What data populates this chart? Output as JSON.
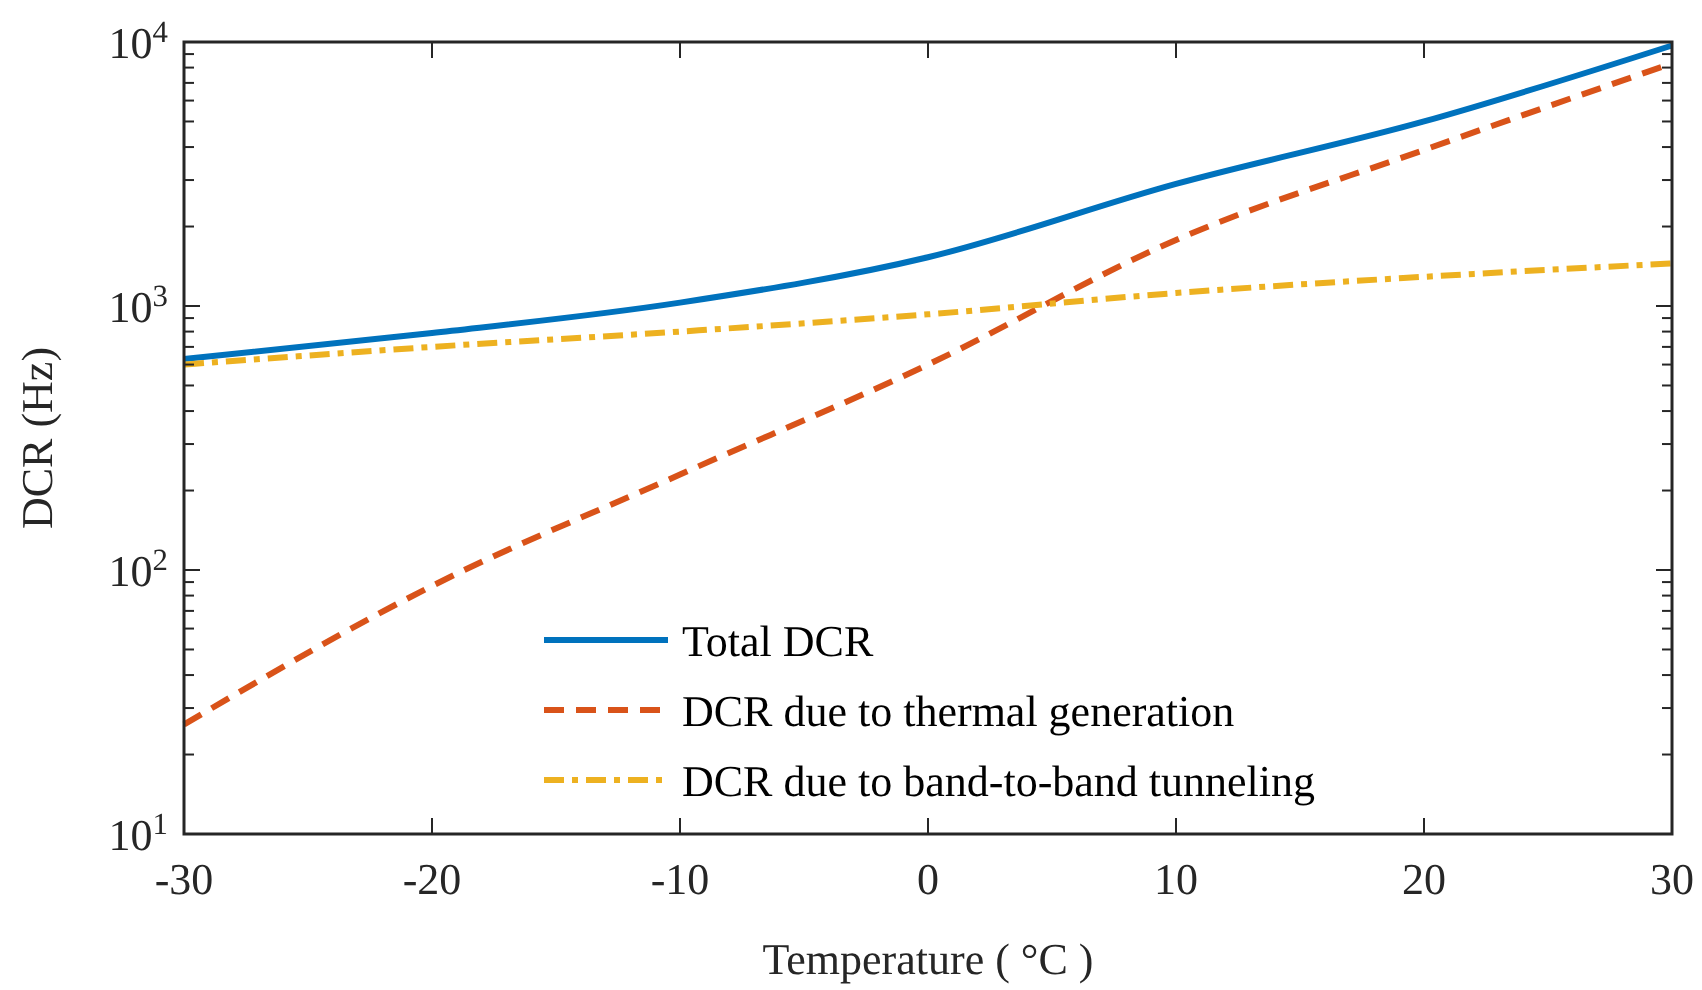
{
  "chart_data": {
    "type": "line",
    "xlabel": "Temperature ( °C )",
    "ylabel": "DCR (Hz)",
    "log": "y",
    "grid": false,
    "legend": "bottom",
    "x": [
      -30,
      -20,
      -10,
      0,
      10,
      20,
      30
    ],
    "xlim": [
      -30,
      30
    ],
    "xticks": [
      -30,
      -20,
      -10,
      0,
      10,
      20,
      30
    ],
    "ylim": [
      10,
      10000
    ],
    "yticks": [
      {
        "value": 10,
        "label": "10$^{1}$"
      },
      {
        "value": 20,
        "label": null
      },
      {
        "value": 30,
        "label": null
      },
      {
        "value": 40,
        "label": null
      },
      {
        "value": 50,
        "label": null
      },
      {
        "value": 60,
        "label": null
      },
      {
        "value": 70,
        "label": null
      },
      {
        "value": 80,
        "label": null
      },
      {
        "value": 90,
        "label": null
      },
      {
        "value": 100,
        "label": "10$^{2}$"
      },
      {
        "value": 200,
        "label": null
      },
      {
        "value": 300,
        "label": null
      },
      {
        "value": 400,
        "label": null
      },
      {
        "value": 500,
        "label": null
      },
      {
        "value": 600,
        "label": null
      },
      {
        "value": 700,
        "label": null
      },
      {
        "value": 800,
        "label": null
      },
      {
        "value": 900,
        "label": null
      },
      {
        "value": 1000,
        "label": "10$^{3}$"
      },
      {
        "value": 2000,
        "label": null
      },
      {
        "value": 3000,
        "label": null
      },
      {
        "value": 4000,
        "label": null
      },
      {
        "value": 5000,
        "label": null
      },
      {
        "value": 6000,
        "label": null
      },
      {
        "value": 7000,
        "label": null
      },
      {
        "value": 8000,
        "label": null
      },
      {
        "value": 9000,
        "label": null
      },
      {
        "value": 10000,
        "label": "10$^{4}$"
      }
    ],
    "series": [
      {
        "name": "Total DCR",
        "color": "#0072bd",
        "line_style": "solid",
        "values": [
          630,
          790,
          1030,
          1530,
          2900,
          5000,
          9700
        ]
      },
      {
        "name": "DCR due to thermal generation",
        "color": "#d95319",
        "line_style": "dashed",
        "values": [
          26,
          87,
          230,
          600,
          1780,
          3900,
          8300
        ]
      },
      {
        "name": "DCR due to band-to-band tunneling",
        "color": "#edb120",
        "line_style": "dashdot",
        "values": [
          600,
          700,
          800,
          930,
          1120,
          1290,
          1450
        ]
      }
    ]
  }
}
